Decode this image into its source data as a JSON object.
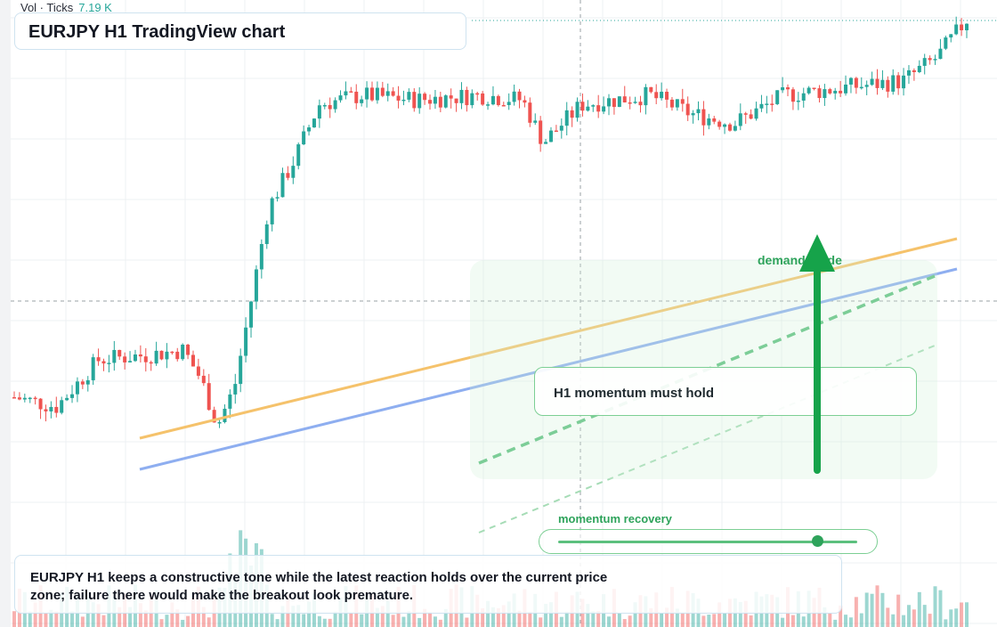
{
  "header": {
    "title": "EURJPY H1 TradingView chart",
    "volume_label": "Vol · Ticks",
    "volume_value": "7.19 K"
  },
  "annotations": {
    "demand_label": "demand guide",
    "callout": "H1 momentum must hold",
    "recovery_label": "momentum recovery",
    "recovery_level": 0.87,
    "note": "EURJPY H1 keeps a constructive tone while the latest reaction holds over the current price zone; failure there would make the breakout look premature."
  },
  "colors": {
    "up": "#26a69a",
    "down": "#ef5350",
    "accent_green": "#2ea35b",
    "orange_line": "#f5c26b",
    "blue_line": "#8eaef0"
  },
  "chart_data": {
    "type": "candlestick",
    "symbol": "EURJPY",
    "timeframe": "H1",
    "y_range": [
      0,
      100
    ],
    "candle_count": 182,
    "trend": "steep rally from the lows, sideways consolidation, then breakout to new highs",
    "overlays": [
      "rising orange trendline",
      "rising blue trendline",
      "green dashed channel",
      "green up arrow"
    ],
    "grid": true,
    "crosshair": true
  }
}
